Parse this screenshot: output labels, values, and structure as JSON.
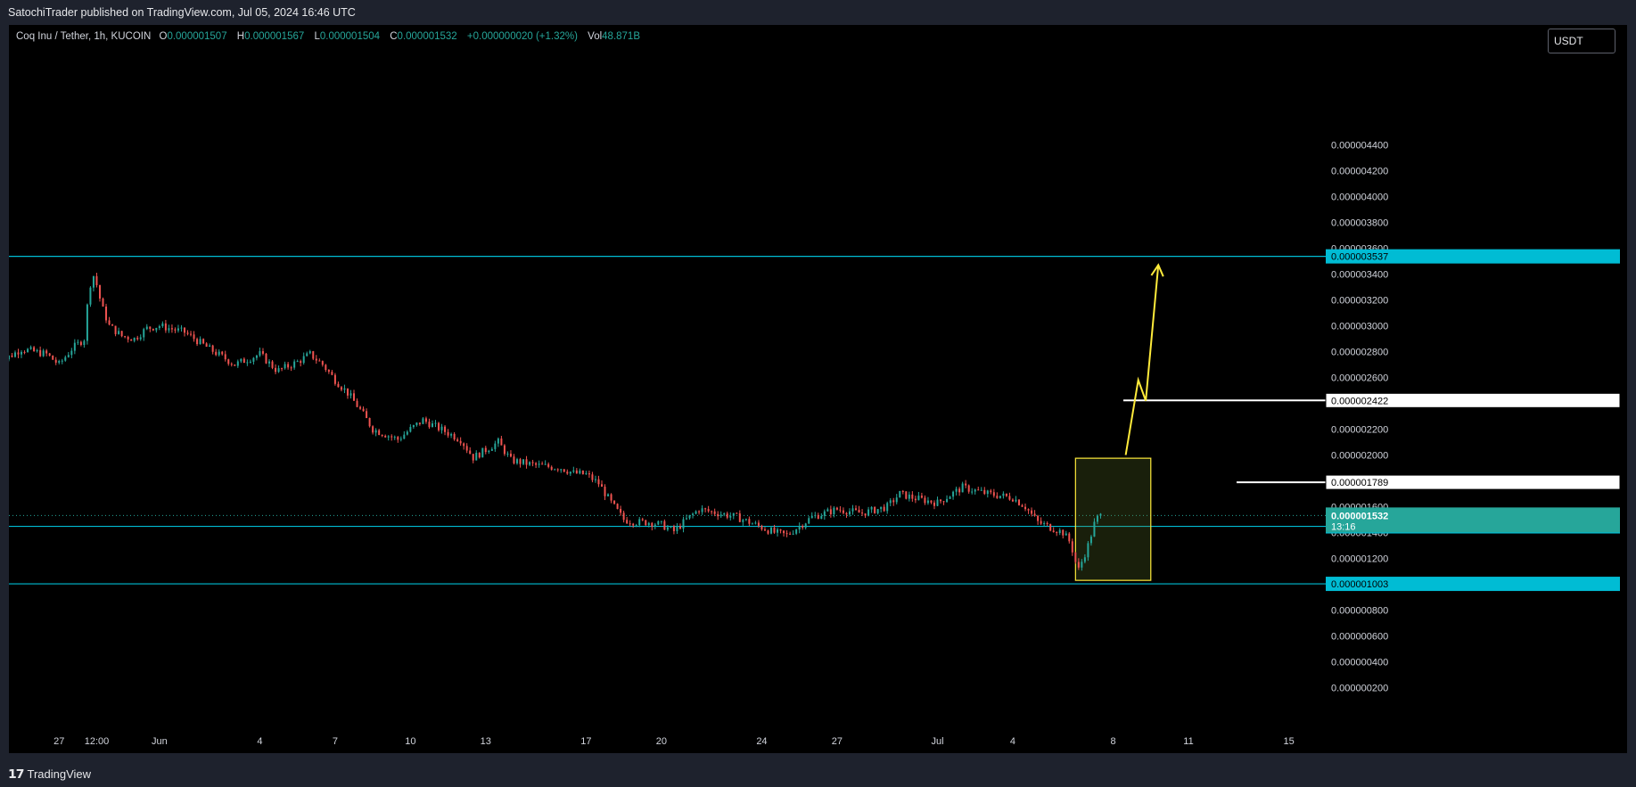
{
  "header": {
    "published": "SatochiTrader published on TradingView.com, Jul 05, 2024 16:46 UTC"
  },
  "legend": {
    "symbol": "Coq Inu / Tether, 1h, KUCOIN",
    "open_label": "O",
    "open": "0.000001507",
    "high_label": "H",
    "high": "0.000001567",
    "low_label": "L",
    "low": "0.000001504",
    "close_label": "C",
    "close": "0.000001532",
    "change": "+0.000000020 (+1.32%)",
    "vol_label": "Vol",
    "vol": "48.871B"
  },
  "currency_button": "USDT",
  "footer": {
    "brand": "TradingView"
  },
  "colors": {
    "background": "#000000",
    "up": "#26a69a",
    "down": "#ef5350",
    "level": "#00bcd4",
    "target": "#ffeb3b",
    "white_level": "#ffffff"
  },
  "chart_data": {
    "type": "candlestick",
    "title": "Coq Inu / Tether, 1h, KUCOIN",
    "y_ticks": [
      2e-07,
      4e-07,
      6e-07,
      8e-07,
      1.2e-06,
      1.4e-06,
      1.6e-06,
      2e-06,
      2.2e-06,
      2.6e-06,
      2.8e-06,
      3e-06,
      3.2e-06,
      3.4e-06,
      3.6e-06,
      3.8e-06,
      4e-06,
      4.2e-06,
      4.4e-06
    ],
    "y_tick_labels": [
      "0.000000200",
      "0.000000400",
      "0.000000600",
      "0.000000800",
      "0.000001200",
      "0.000001400",
      "0.000001600",
      "0.000002000",
      "0.000002200",
      "0.000002600",
      "0.000002800",
      "0.000003000",
      "0.000003200",
      "0.000003400",
      "0.000003600",
      "0.000003800",
      "0.000004000",
      "0.000004200",
      "0.000004400"
    ],
    "x_ticks": [
      {
        "label": "27",
        "day": -5
      },
      {
        "label": "12:00",
        "day": -3.5
      },
      {
        "label": "Jun",
        "day": -1
      },
      {
        "label": "4",
        "day": 3
      },
      {
        "label": "7",
        "day": 6
      },
      {
        "label": "10",
        "day": 9
      },
      {
        "label": "13",
        "day": 12
      },
      {
        "label": "17",
        "day": 16
      },
      {
        "label": "20",
        "day": 19
      },
      {
        "label": "24",
        "day": 23
      },
      {
        "label": "27",
        "day": 26
      },
      {
        "label": "Jul",
        "day": 30
      },
      {
        "label": "4",
        "day": 33
      },
      {
        "label": "8",
        "day": 37
      },
      {
        "label": "11",
        "day": 40
      },
      {
        "label": "15",
        "day": 44
      }
    ],
    "price_path": [
      [
        -7.5,
        2.7e-06
      ],
      [
        -6.5,
        2.82e-06
      ],
      [
        -5.5,
        2.78e-06
      ],
      [
        -5,
        2.7e-06
      ],
      [
        -4.5,
        2.82e-06
      ],
      [
        -4,
        2.9e-06
      ],
      [
        -3.8,
        3.3e-06
      ],
      [
        -3.6,
        3.4e-06
      ],
      [
        -3.3,
        3.15e-06
      ],
      [
        -3,
        3e-06
      ],
      [
        -2.5,
        2.92e-06
      ],
      [
        -2,
        2.9e-06
      ],
      [
        -1.5,
        2.98e-06
      ],
      [
        -1,
        3e-06
      ],
      [
        0,
        2.95e-06
      ],
      [
        1,
        2.82e-06
      ],
      [
        2,
        2.7e-06
      ],
      [
        3,
        2.78e-06
      ],
      [
        3.7,
        2.65e-06
      ],
      [
        4.5,
        2.72e-06
      ],
      [
        5,
        2.78e-06
      ],
      [
        5.5,
        2.7e-06
      ],
      [
        6,
        2.58e-06
      ],
      [
        6.5,
        2.48e-06
      ],
      [
        7,
        2.35e-06
      ],
      [
        7.5,
        2.2e-06
      ],
      [
        8,
        2.16e-06
      ],
      [
        8.5,
        2.12e-06
      ],
      [
        9,
        2.2e-06
      ],
      [
        9.5,
        2.27e-06
      ],
      [
        10,
        2.22e-06
      ],
      [
        11,
        2.12e-06
      ],
      [
        11.5,
        1.98e-06
      ],
      [
        12.5,
        2.1e-06
      ],
      [
        13,
        1.96e-06
      ],
      [
        14,
        1.92e-06
      ],
      [
        15,
        1.9e-06
      ],
      [
        15.5,
        1.86e-06
      ],
      [
        16,
        1.85e-06
      ],
      [
        16.5,
        1.78e-06
      ],
      [
        17,
        1.63e-06
      ],
      [
        17.5,
        1.5e-06
      ],
      [
        18,
        1.48e-06
      ],
      [
        18.5,
        1.48e-06
      ],
      [
        19,
        1.46e-06
      ],
      [
        19.5,
        1.41e-06
      ],
      [
        20,
        1.5e-06
      ],
      [
        20.5,
        1.58e-06
      ],
      [
        21,
        1.56e-06
      ],
      [
        22,
        1.52e-06
      ],
      [
        23,
        1.44e-06
      ],
      [
        23.5,
        1.4e-06
      ],
      [
        24,
        1.38e-06
      ],
      [
        25,
        1.52e-06
      ],
      [
        26,
        1.58e-06
      ],
      [
        27,
        1.55e-06
      ],
      [
        28,
        1.6e-06
      ],
      [
        28.5,
        1.7e-06
      ],
      [
        29,
        1.67e-06
      ],
      [
        30,
        1.63e-06
      ],
      [
        31,
        1.75e-06
      ],
      [
        32,
        1.7e-06
      ],
      [
        33,
        1.67e-06
      ],
      [
        33.5,
        1.6e-06
      ],
      [
        34,
        1.48e-06
      ],
      [
        35,
        1.4e-06
      ],
      [
        35.3,
        1.32e-06
      ],
      [
        35.6,
        1.1e-06
      ],
      [
        36,
        1.3e-06
      ],
      [
        36.3,
        1.5e-06
      ],
      [
        36.5,
        1.53e-06
      ]
    ],
    "levels": [
      {
        "price": 3.537e-06,
        "label": "0.000003537",
        "style": "cyan-solid"
      },
      {
        "price": 1.448e-06,
        "label": "0.000001448",
        "style": "cyan-solid"
      },
      {
        "price": 1.003e-06,
        "label": "0.000001003",
        "style": "cyan-solid"
      },
      {
        "price": 2.422e-06,
        "label": "0.000002422",
        "style": "white-short"
      },
      {
        "price": 1.789e-06,
        "label": "0.000001789",
        "style": "white-short"
      }
    ],
    "current": {
      "price": 1.532e-06,
      "label": "0.000001532",
      "countdown": "13:16"
    },
    "target_box": {
      "day_from": 35.5,
      "day_to": 38.5,
      "price_from": 1.03e-06,
      "price_to": 1.975e-06
    },
    "target_path": [
      [
        37.5,
        2e-06
      ],
      [
        38,
        2.58e-06
      ],
      [
        38.3,
        2.42e-06
      ],
      [
        38.8,
        3.47e-06
      ]
    ]
  }
}
